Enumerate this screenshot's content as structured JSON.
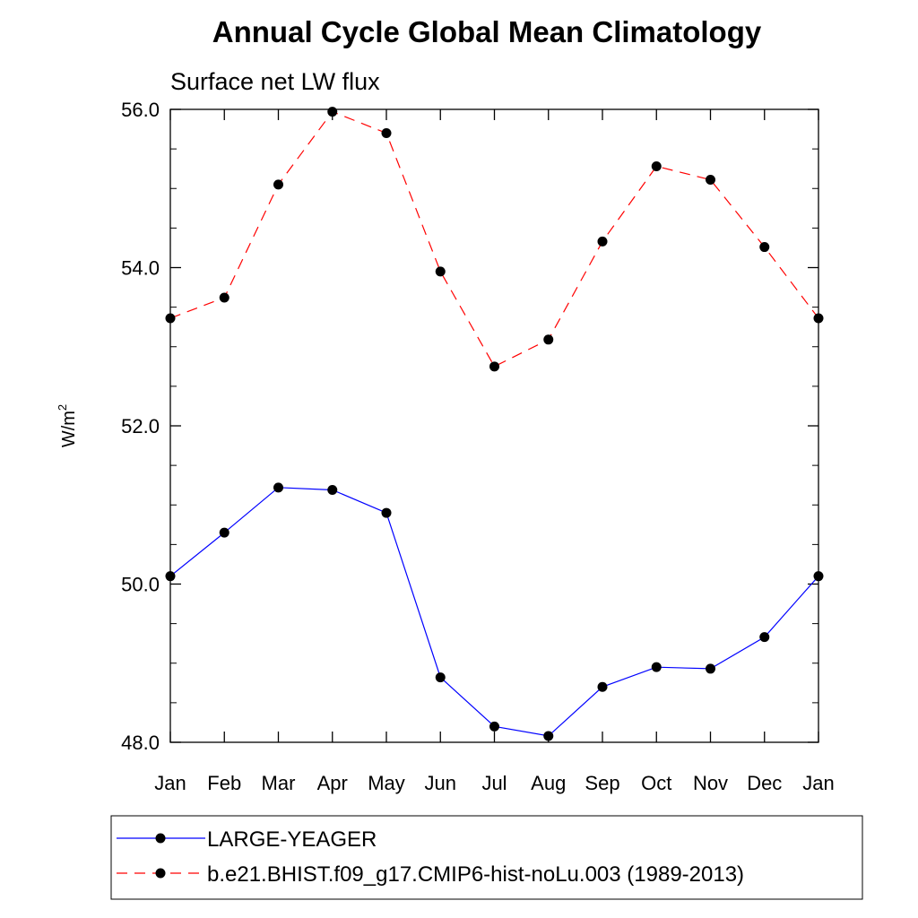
{
  "chart_data": {
    "type": "line",
    "title": "Annual Cycle Global Mean Climatology",
    "subtitle": "Surface net LW flux",
    "xlabel": "",
    "ylabel": "W/m",
    "ylabel_sup": "2",
    "categories": [
      "Jan",
      "Feb",
      "Mar",
      "Apr",
      "May",
      "Jun",
      "Jul",
      "Aug",
      "Sep",
      "Oct",
      "Nov",
      "Dec",
      "Jan"
    ],
    "ylim": [
      48.0,
      56.0
    ],
    "yticks": [
      "48.0",
      "50.0",
      "52.0",
      "54.0",
      "56.0"
    ],
    "yticks_values": [
      48,
      50,
      52,
      54,
      56
    ],
    "grid": false,
    "legend_position": "bottom",
    "series": [
      {
        "name": "LARGE-YEAGER",
        "color": "#0000ff",
        "line_style": "solid",
        "marker": "filled-circle",
        "values": [
          50.1,
          50.65,
          51.22,
          51.19,
          50.9,
          48.82,
          48.2,
          48.08,
          48.7,
          48.95,
          48.93,
          49.33,
          50.1
        ]
      },
      {
        "name": "b.e21.BHIST.f09_g17.CMIP6-hist-noLu.003 (1989-2013)",
        "color": "#ff0000",
        "line_style": "dashed",
        "marker": "filled-circle",
        "values": [
          53.36,
          53.62,
          55.05,
          55.97,
          55.7,
          53.95,
          52.75,
          53.09,
          54.33,
          55.28,
          55.11,
          54.26,
          53.36
        ]
      }
    ]
  }
}
